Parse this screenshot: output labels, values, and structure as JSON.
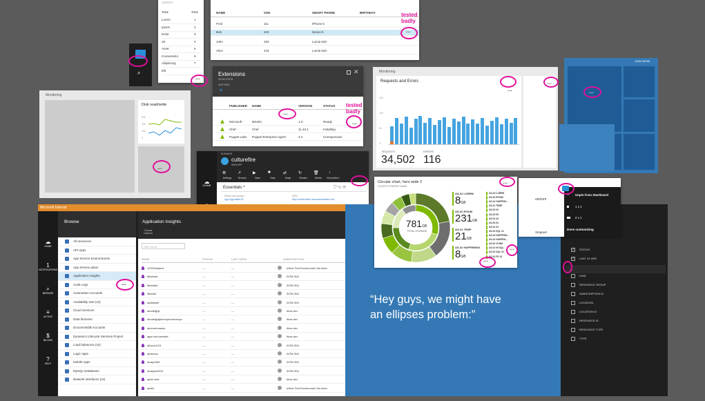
{
  "top_table": {
    "headers": [
      "NAME",
      "SSN",
      "SMART PHONE",
      "BIRTHDAY"
    ],
    "rows": [
      [
        "Fred",
        "111",
        "iPhone 5",
        ""
      ],
      [
        "Bob",
        "222",
        "Nexus 5",
        ""
      ],
      [
        "John",
        "333",
        "Lumia 520",
        ""
      ],
      [
        "Alice",
        "444",
        "Lumia 520",
        ""
      ]
    ],
    "tested_label": "tested\nbadly"
  },
  "title_list": {
    "header_context": "CONTEXT",
    "col_title": "TITLE",
    "col_title2": "TITLE",
    "rows": [
      [
        "Lorem",
        "1"
      ],
      [
        "Ipsum",
        "2"
      ],
      [
        "Dolor",
        "3"
      ],
      [
        "Sit",
        "4"
      ],
      [
        "Amet",
        "5"
      ],
      [
        "Consectetur",
        "6"
      ],
      [
        "Adipiscing",
        "7"
      ],
      [
        "Elit",
        ""
      ]
    ]
  },
  "extensions": {
    "title": "Extensions",
    "subtitle": "SEVENTEEN",
    "add_new": "ADD NEW",
    "headers": [
      "PUBLISHER",
      "NAME",
      "VERSION",
      "STATUS"
    ],
    "rows": [
      [
        "Microsoft",
        "BGInfo",
        "1.0",
        "Ready"
      ],
      [
        "Chef",
        "Chef",
        "11.10.4",
        "Installing"
      ],
      [
        "Puppet Labs",
        "Puppet Enterprise Agent",
        "3.2",
        "Unresponsive"
      ]
    ],
    "tested_label": "tested\nbadly"
  },
  "monitoring_disk": {
    "label": "Monitoring",
    "tile_title": "Disk read/write",
    "y_ticks": [
      "60k",
      "40k",
      "20k",
      "0"
    ]
  },
  "monitoring_requests": {
    "label": "Monitoring",
    "title": "Requests and Errors",
    "requests_label": "REQUESTS",
    "requests_value": "34,502",
    "errors_label": "ERRORS",
    "errors_value": "116",
    "y_ticks": [
      "150",
      "100",
      "50",
      "0"
    ]
  },
  "culturefire": {
    "section_label": "RUNNING",
    "name": "culturefire",
    "type": "WEB APP",
    "toolbar": [
      "Settings",
      "Browse",
      "Start",
      "Stop",
      "Swap",
      "Restart",
      "Delete",
      "Get publish..."
    ],
    "essentials": "Essentials",
    "left_fields": [
      [
        "Resource group",
        "rgp-mjpotlaeUS"
      ],
      [
        "Status",
        "Running"
      ],
      [
        "Location",
        "East US 2"
      ],
      [
        "Subscription name",
        "Windows Azure MSDN - Visual Studio Ult..."
      ],
      [
        "Subscription id",
        "0f5f1bc8-0816-4364-a7f9-0c978a4505c"
      ]
    ],
    "right_fields": [
      [
        "URL",
        "http://culturefire.azurewebsites.net"
      ],
      [
        "App Service plan/pricing tier",
        "Plan (Standard: 1 Large)"
      ],
      [
        "Linked database",
        "mjpotlaeUS"
      ],
      [
        "FTP/deployment username",
        "culturefire\\culturefire"
      ],
      [
        "FTP hostname",
        "ftp://waws-prod-bn1-003.ftp.azurewebsite..."
      ]
    ],
    "all_settings": "All settings ➔"
  },
  "leftnav_small": [
    "HOME",
    "NOTIFICATIONS",
    "BROWSE"
  ],
  "portal": {
    "title": "Microsoft Internal",
    "nav": [
      {
        "glyph": "☁",
        "label": "HOME"
      },
      {
        "glyph": "1",
        "label": "NOTIFICATIONS"
      },
      {
        "glyph": "⌕",
        "label": "BROWSE"
      },
      {
        "glyph": "≡",
        "label": "ACTIVE"
      },
      {
        "glyph": "$",
        "label": "BILLING"
      },
      {
        "glyph": "?",
        "label": "HELP"
      }
    ],
    "browse_title": "Browse",
    "browse_items": [
      "All resources",
      "API Apps",
      "App Service Environments",
      "App Service plans",
      "Application Insights",
      "Audit Logs",
      "Automation Accounts",
      "Availability sets (v2)",
      "Cloud Services",
      "Data factories",
      "DocumentDB Accounts",
      "Dynamics Lifecycle Services Project",
      "Load balancers (v2)",
      "Logic Apps",
      "Mobile Apps",
      "MySQL Databases",
      "Network interfaces (v2)"
    ],
    "ai_title": "Application Insights",
    "ai_add": "Choose\ncolumns",
    "filter_placeholder": "Filter items...",
    "headers": [
      "NAME",
      "STATUS",
      "LAST SEEN",
      "SUBSCRIPTION"
    ],
    "rows": [
      [
        "1234Sdsptext",
        "---",
        "---",
        "eNext Test Environment Services"
      ],
      [
        "ifdddedd",
        "---",
        "---",
        "INTB-SN1"
      ],
      [
        "ifdddddd",
        "---",
        "---",
        "INTB-SN1"
      ],
      [
        "ifddddd",
        "---",
        "---",
        "INTB-SN1"
      ],
      [
        "asdfasdsf",
        "---",
        "---",
        "INTB-SN1"
      ],
      [
        "abcdefghjl",
        "---",
        "---",
        "Ibiza dev"
      ],
      [
        "abcdefghijklmnoperstuvwxyz",
        "---",
        "---",
        "Ibiza dev"
      ],
      [
        "abcmmmaamp",
        "---",
        "---",
        "Ibiza dev"
      ],
      [
        "ager-test-website",
        "---",
        "---",
        "Ibiza dev"
      ],
      [
        "alicoolu123",
        "---",
        "---",
        "INTB-SN1"
      ],
      [
        "alvestool",
        "---",
        "---",
        "INTB-SN1"
      ],
      [
        "analy1380",
        "---",
        "---",
        "INTB-SN1"
      ],
      [
        "analysw0019",
        "---",
        "---",
        "INTB-SN1"
      ],
      [
        "apicb-test",
        "---",
        "---",
        "Ibiza dev"
      ],
      [
        "asdfd",
        "---",
        "---",
        "eNext Test Environment Services"
      ]
    ]
  },
  "donut": {
    "title": "Circular chart, hero wide 2",
    "subtitle": "CONTEXT/PARENT NAME",
    "center_value": "781",
    "center_unit": "GB",
    "center_label": "TOTAL STORAGE",
    "big_values": [
      {
        "label": "AS-02 LOREM",
        "value": "8",
        "unit": "GB"
      },
      {
        "label": "AS-02 IPSUM",
        "value": "231",
        "unit": "GB"
      },
      {
        "label": "AS-01 TEMP",
        "value": "21",
        "unit": "GB"
      },
      {
        "label": "AS-02 HAPPENING",
        "value": "8",
        "unit": "GB"
      }
    ],
    "small_list": [
      "AS-02 LOREM",
      "AS-02 IPSUM",
      "AS-01 HAPPENI...",
      "AS-01 TEMP",
      "AS-02 03",
      "AS-02 05",
      "AS-01 04",
      "AS-02 04",
      "AS-01 03",
      "AS-02 SQL 1C",
      "AS-02 HAPPENG...",
      "AS-01 HAPPEN...",
      "AS-02 15 BM",
      "AS-01 05 SQL",
      "AS-02 SQL 04",
      "AS-01 FS 13"
    ]
  },
  "context_menu": {
    "header": "unicorn",
    "items": [
      "Unpin from Startboard",
      "1 x 1",
      "2 x 1",
      "Done customizing"
    ],
    "status": "Stopped"
  },
  "right_panel": {
    "items": [
      {
        "label": "STATUS",
        "checked": true
      },
      {
        "label": "LAST 24 HRS",
        "checked": true
      },
      {
        "label": "KIND",
        "checked": false
      },
      {
        "label": "RESOURCE GROUP",
        "checked": false
      },
      {
        "label": "SUBSCRIPTION ID",
        "checked": false
      },
      {
        "label": "LOCATION",
        "checked": false
      },
      {
        "label": "LOCATION ID",
        "checked": false
      },
      {
        "label": "RESOURCE ID",
        "checked": false
      },
      {
        "label": "RESOURCE TYPE",
        "checked": false
      },
      {
        "label": "TYPE",
        "checked": false
      }
    ]
  },
  "tiles_label": "JOHN DEERE",
  "ellipsis": "...",
  "quote": "“Hey guys, we might have\nan ellipses problem:”"
}
